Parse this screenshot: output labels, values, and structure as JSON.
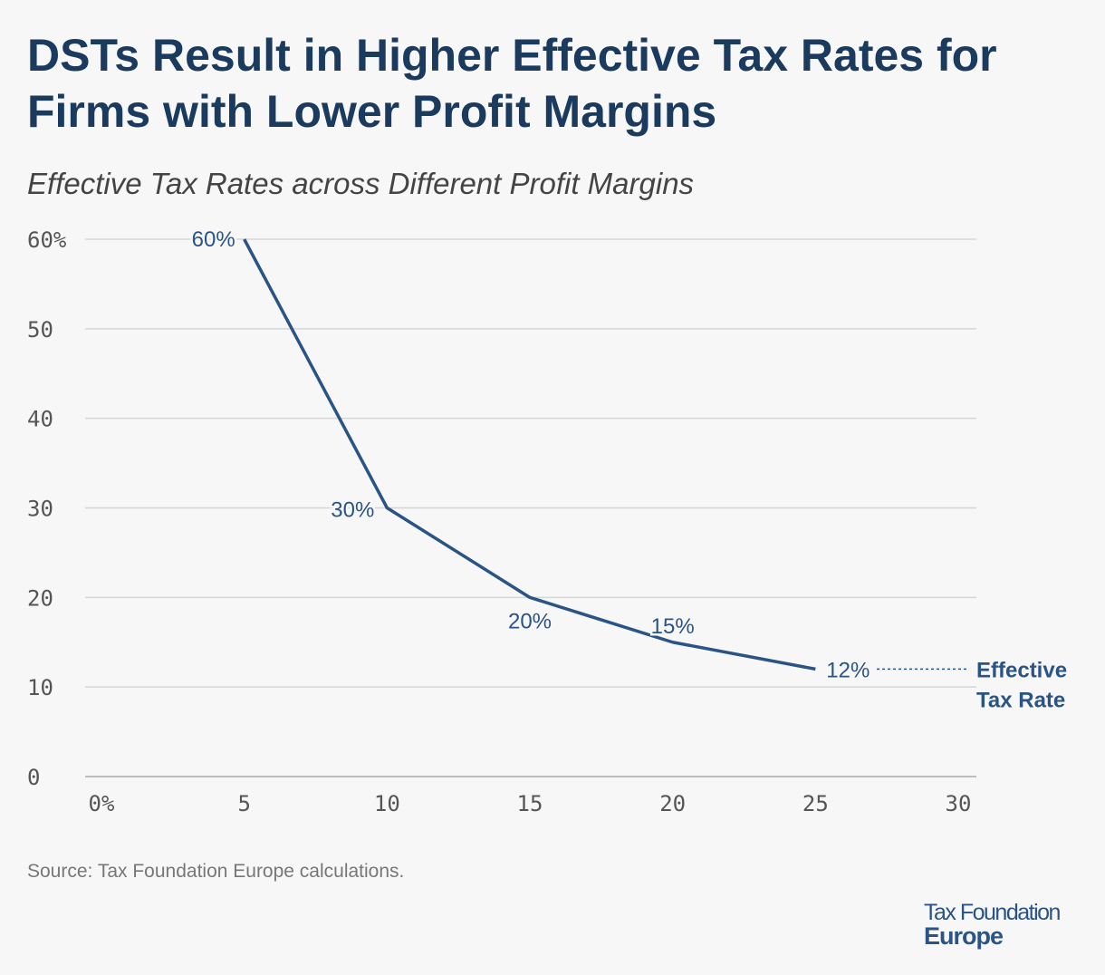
{
  "header": {
    "title": "DSTs Result in Higher Effective Tax Rates for Firms with Lower Profit Margins",
    "subtitle": "Effective Tax Rates across Different Profit Margins"
  },
  "footer": {
    "source": "Source: Tax Foundation Europe calculations.",
    "logo_line1": "Tax Foundation",
    "logo_line2": "Europe"
  },
  "colors": {
    "line": "#2a5486",
    "title": "#1a3a5e",
    "grid": "#d6d6d6",
    "axis_text": "#555555"
  },
  "chart_data": {
    "type": "line",
    "title": "DSTs Result in Higher Effective Tax Rates for Firms with Lower Profit Margins",
    "subtitle": "Effective Tax Rates across Different Profit Margins",
    "x": [
      5,
      10,
      15,
      20,
      25
    ],
    "series": [
      {
        "name": "Effective Tax Rate",
        "values": [
          60,
          30,
          20,
          15,
          12
        ],
        "labels": [
          "60%",
          "30%",
          "20%",
          "15%",
          "12%"
        ]
      }
    ],
    "xlim": [
      0,
      30
    ],
    "ylim": [
      0,
      60
    ],
    "x_ticks": [
      "0%",
      "5",
      "10",
      "15",
      "20",
      "25",
      "30"
    ],
    "y_ticks": [
      "0",
      "10",
      "20",
      "30",
      "40",
      "50",
      "60%"
    ],
    "grid": "horizontal",
    "legend": "inline-right"
  }
}
